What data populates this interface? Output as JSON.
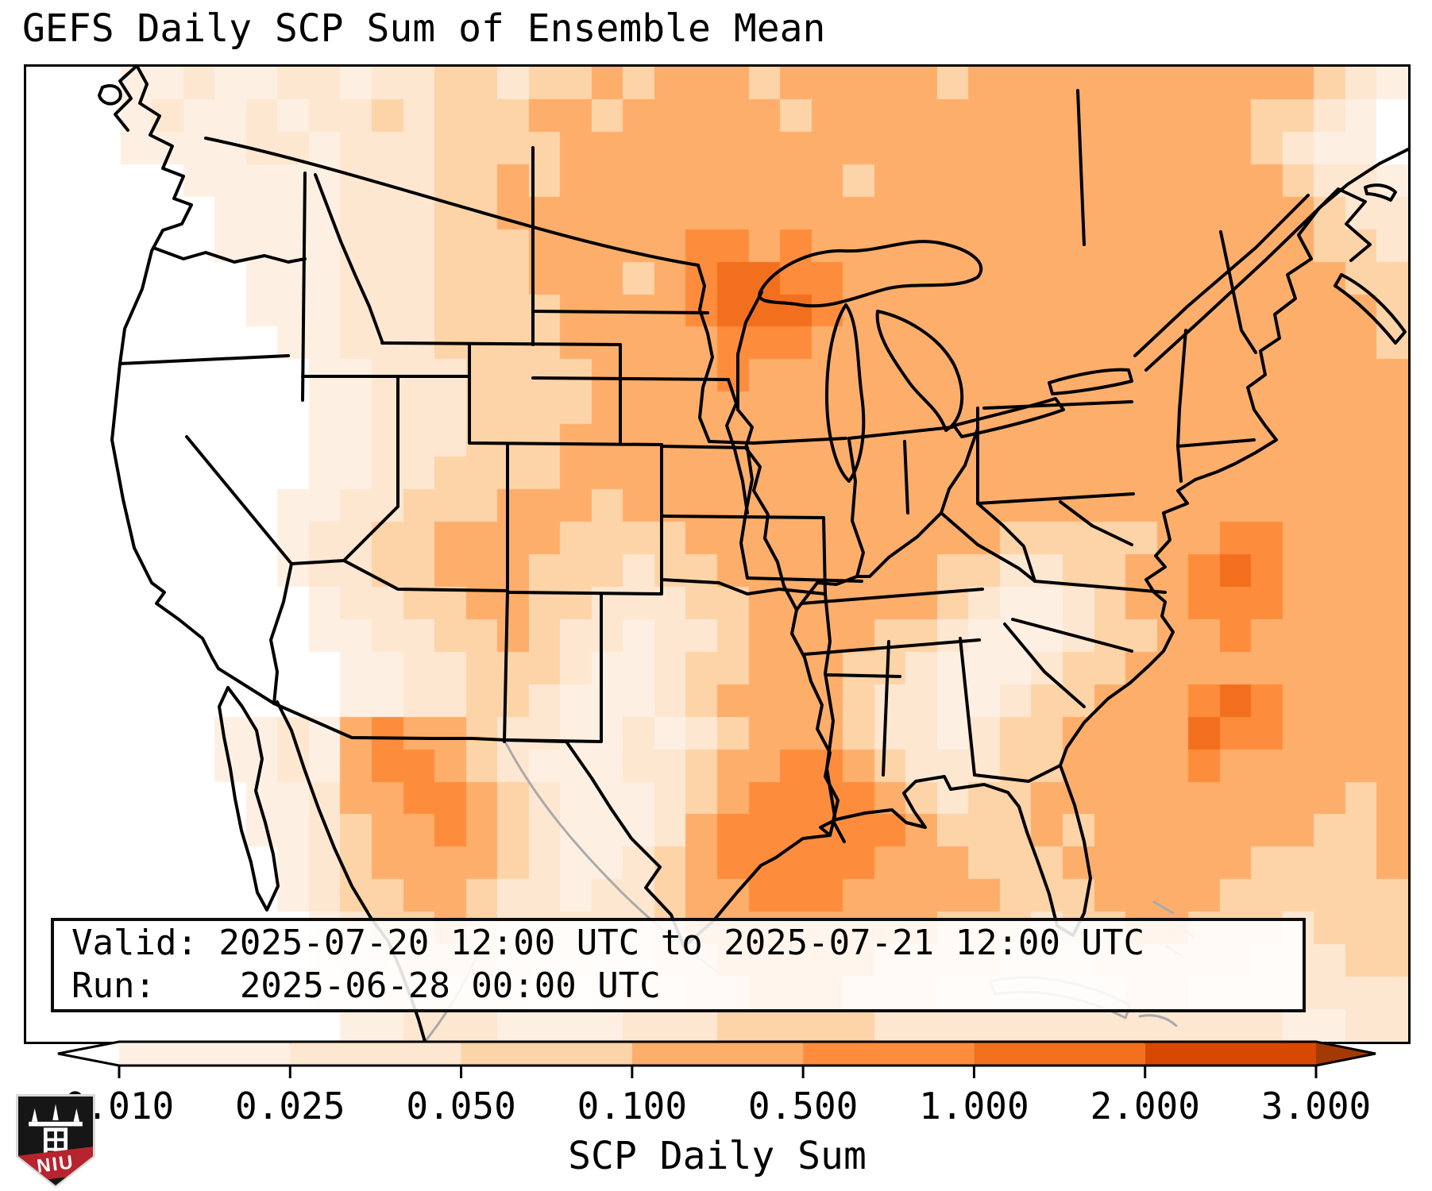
{
  "title": "GEFS Daily SCP Sum of Ensemble Mean",
  "info_box": {
    "valid": "Valid: 2025-07-20 12:00 UTC to 2025-07-21 12:00 UTC",
    "run": "Run:    2025-06-28 00:00 UTC"
  },
  "colorbar": {
    "label": "SCP Daily Sum",
    "ticks": [
      "0.010",
      "0.025",
      "0.050",
      "0.100",
      "0.500",
      "1.000",
      "2.000",
      "3.000"
    ],
    "segment_colors": [
      "#fdf0e3",
      "#fee7d1",
      "#fdd3a8",
      "#fdae6b",
      "#fd8d3c",
      "#f2701d",
      "#d94801"
    ],
    "under_color": "#ffffff",
    "over_color": "#a33903",
    "outline_color": "#000000",
    "extend": "both"
  },
  "logo": {
    "text": "NIU",
    "shield_color": "#161616",
    "band_color": "#b6242e"
  },
  "map": {
    "background": "#ffffff",
    "frame_color": "#000000",
    "state_line_color": "#000000",
    "foreign_line_color": "#aaaaaa",
    "palette": [
      "#ffffff",
      "#fdf0e3",
      "#fee7d1",
      "#fdd3a8",
      "#fdae6b",
      "#fd8d3c",
      "#f2701d",
      "#d94801",
      "#a33903"
    ],
    "grid": {
      "cols": 44,
      "rows": 30,
      "cells": [
        "00011211221223323343444344444344444444444321",
        "00012112122323334434444434444444444444433210",
        "00011112212223333444444444444444444444432110",
        "00000111112223343444444444344444444444443221",
        "00000011112223344444444444444444444444444322",
        "00000011112223334444455454444444444444444332",
        "00000001112223334443456655444444444444444433",
        "00000001112223333444456665444444444444444443",
        "00000000112223333444445554444444444444444443",
        "00000000011222333344445444444444444444444444",
        "00000000011222333344444444444444444444444444",
        "00000000011222333444444444444444444444444444",
        "00000000011223333444444444444444444444444444",
        "00000000112233344434444444444444444444444444",
        "00000000122334444333344444444443333344554444",
        "00000000122334443332334444444332233445654444",
        "00000000012233443322233444444321123445554444",
        "00000000011223343221223444433211123344544444",
        "00000000001122333211233444332111233444444444",
        "00000000001122332111234444322112334445654444",
        "00000011214544322112123444322123344446554444",
        "00000011214554321112234455432223344445444444",
        "00000001124455432111234555543233444444444434",
        "00000001123445432111245555554333434444444334",
        "00000000123444432112345555544433344444433334",
        "00000000123344322122344555444443334444333333",
        "00000000012334322222344444444333233443332333",
        "00000000012233322222334444433332223333322233",
        "00000000011222221122233444333222222332222222",
        "00000000001122211112223333322222222222221122"
      ]
    },
    "borders_black": [
      "M140,0 L152,22 L143,46 L168,62 L156,86 L184,100 L172,128 L198,138 L186,166 L208,174 L196,198 L172,206 L158,232 L146,280 L124,330 L118,374 L108,470 L122,545 L136,606 L158,650 L174,662 L164,676 L192,696 L222,720 L234,744 L242,758",
      "M242,758 L312,802 L410,845 L512,846 L562,846 L604,848 L680,850 L712,896 L736,934 L762,972 L798,1008 L780,1034 L812,1068 L828,1108",
      "M254,782 L272,806 L290,836 L297,872 L289,912 L301,952 L311,992 L317,1032 L303,1062 L291,1040 L283,1002 L271,962 L263,922 L257,884 L249,844 L243,806 Z",
      "M316,800 L334,836 L350,884 L368,934 L388,984 L410,1032 L434,1072 L456,1102 L470,1134 L482,1166 L494,1200 L502,1228",
      "M138,0 L118,18 L132,40 L112,60 L128,80",
      "M96,26 C110,20 122,28 118,40 C110,52 94,46 92,36 Z",
      "M160,228 L198,242 L226,234 L262,246 L300,238 L330,246 L351,242",
      "M351,134 L348,420",
      "M118,374 L330,364",
      "M364,136 L396,220 L414,262 L432,302 L448,346",
      "M448,348 L748,350",
      "M348,390 L558,390",
      "M468,390 L468,554 L400,622 L334,626",
      "M202,466 L334,626",
      "M334,626 L324,674 L308,722 L316,762 L312,802",
      "M558,350 L558,474 M748,350 L748,474 M558,474 L800,476",
      "M606,476 L606,660",
      "M400,622 L468,658 L606,660",
      "M606,660 L602,850",
      "M800,476 L800,664 M606,662 L800,664",
      "M724,664 L724,850 M602,848 L724,850",
      "M638,102 L638,350",
      "M638,308 L858,310",
      "M638,392 L884,394",
      "M226,90 C420,130 660,220 846,250",
      "M846,250 L854,276 L848,306 L858,336 L864,366 L852,404 L848,442 L860,472",
      "M884,394 L894,424 L882,452 L892,482 L902,522 L908,562",
      "M860,472 L916,474",
      "M800,478 L908,480",
      "M908,480 L914,520 L906,562 L900,600 L908,644",
      "M800,566 L1004,568",
      "M800,568 L800,646 M800,646 L872,650",
      "M872,650 L908,664 L948,658 L1006,664",
      "M1004,568 L1006,664",
      "M908,644 L1052,648",
      "M1006,664 L1012,724 L1006,764 L1016,824 L1008,884 L1018,944 L1012,968",
      "M1008,766 L1100,768",
      "M896,432 L914,454 L906,480 L924,504 L916,534 L934,564 L930,594 L946,624 L954,654 L970,684 L964,714 L980,744 L988,774 L1002,804 L996,834 L1012,864 L1006,894 L1022,924 L1016,950 L1030,976",
      "M926,284 L906,322 L896,362 L896,432",
      "M916,474 L1032,468",
      "M1036,470 L1044,522 L1040,572 L1054,612 L1046,642",
      "M1152,562 L1122,592 L1086,618 L1062,642 L1046,642 L1020,652 L996,650 L970,684",
      "M1106,472 L1110,562",
      "M1036,468 L1166,454",
      "M976,676 L1204,658",
      "M1152,562 L1198,602 L1250,632 L1270,648",
      "M1270,648 L1434,662",
      "M980,740 L1200,722",
      "M1086,724 L1079,892",
      "M1176,720 L1194,892",
      "M1194,892 L1262,900 L1302,880",
      "M1232,702 L1282,762 L1332,806",
      "M1242,696 L1392,736",
      "M1198,550 L1230,578 L1256,604 L1270,648",
      "M1198,456 L1182,502 L1162,532 L1152,562",
      "M1206,430 L1392,422 M1198,430 L1198,550 M1198,550 L1394,538",
      "M1302,548 L1342,578 L1392,602",
      "M925,282 C940,255 985,230 1030,232 C1075,234 1110,214 1150,222 C1190,230 1212,248 1198,265 C1170,282 1120,270 1082,280 C1045,290 1010,306 975,300 C948,295 915,300 925,282 Z",
      "M1032,300 C1048,322 1046,370 1052,415 C1058,458 1052,500 1036,522 C1018,505 1008,460 1008,415 C1008,368 1016,324 1032,300 Z",
      "M1072,308 C1105,315 1148,338 1168,375 C1185,410 1180,445 1158,458 C1148,430 1128,420 1112,398 C1096,375 1068,338 1072,308 Z",
      "M1168,452 C1205,442 1258,430 1296,418 L1306,432 C1268,446 1215,458 1178,466 Z",
      "M1288,398 C1320,388 1360,380 1388,382 L1392,396 C1360,404 1320,410 1292,412 Z",
      "M1324,30 L1332,224",
      "M1396,364 L1462,302 L1548,228 L1614,162 M1410,382 L1478,320 L1562,242 L1628,178",
      "M1628,178 L1602,212 L1618,242 L1588,262 L1598,292 L1572,312 L1578,342 L1554,358 L1560,388 L1538,404 L1546,432 L1560,452 L1574,470 L1548,486 L1522,500 L1500,510 L1472,520 L1450,534 L1462,550 L1432,562 L1440,596 L1422,616 L1434,630 L1410,646 L1420,662 L1434,674 L1430,692 L1444,712 L1432,736 L1414,754 L1390,776 L1362,796 L1332,826 L1310,858 L1302,880 L1320,930 L1332,976 L1340,1022 L1332,1066 L1318,1094 L1298,1082 L1288,1042 L1274,1002 L1260,964 L1250,932 L1236,914 L1206,904 L1164,910 L1156,894 L1120,900 L1105,915 L1118,938 L1132,958 L1108,952 L1090,936 L1056,940 L1020,948 L1000,958 L1012,968 L978,972 L944,996 L925,1006 L895,1040 L865,1076 L840,1098 L828,1108",
      "M1460,332 L1452,432 M1452,432 L1450,478 M1450,478 L1546,470 M1450,478 L1454,522 M1504,208 L1530,332 L1548,360",
      "M1656,262 C1688,278 1716,306 1736,334 L1724,348 C1700,318 1672,292 1648,276 Z",
      "M1686,152 C1700,146 1716,150 1724,158 L1718,168 C1706,162 1694,160 1688,160 Z",
      "M1628,178 L1652,154 L1686,170 L1662,198 L1692,224 L1668,244",
      "M1628,178 L1664,148 L1704,122 L1740,104"
    ],
    "borders_gray": [
      "M1214,1152 C1262,1140 1330,1150 1390,1182 L1384,1198 C1330,1170 1264,1160 1220,1168 Z",
      "M1402,1196 C1420,1192 1438,1198 1448,1208",
      "M604,852 C640,920 690,980 750,1040 C790,1080 830,1110 870,1140",
      "M502,1228 C540,1180 560,1140 575,1100",
      "M1420,1052 L1444,1066 M1452,1082 L1470,1096 M1436,1108 L1452,1118"
    ]
  },
  "chart_data": {
    "type": "heatmap",
    "title": "GEFS Daily SCP Sum of Ensemble Mean",
    "colorbar_label": "SCP Daily Sum",
    "value_levels": [
      0.01,
      0.025,
      0.05,
      0.1,
      0.5,
      1.0,
      2.0,
      3.0
    ],
    "colormap": "Oranges (discrete, extend both)",
    "legend_position": "bottom",
    "region": "Continental United States with surrounding Canada, Mexico, Gulf of Mexico and Atlantic",
    "valid_period": "2025-07-20 12:00 UTC to 2025-07-21 12:00 UTC",
    "model_run": "2025-06-28 00:00 UTC",
    "grid_value_key": {
      "0": "< 0.010",
      "1": "0.010-0.025",
      "2": "0.025-0.050",
      "3": "0.050-0.100",
      "4": "0.100-0.500",
      "5": "0.500-1.000",
      "6": "1.000-2.000"
    },
    "notable_features": [
      "Maximum SCP (1.000-2.000) over southern Minnesota / western Wisconsin",
      "Secondary maxima over the Gulf of Mexico and off the Carolina coast",
      "Near-zero values along the Pacific coast, California, Nevada and Oregon"
    ]
  }
}
